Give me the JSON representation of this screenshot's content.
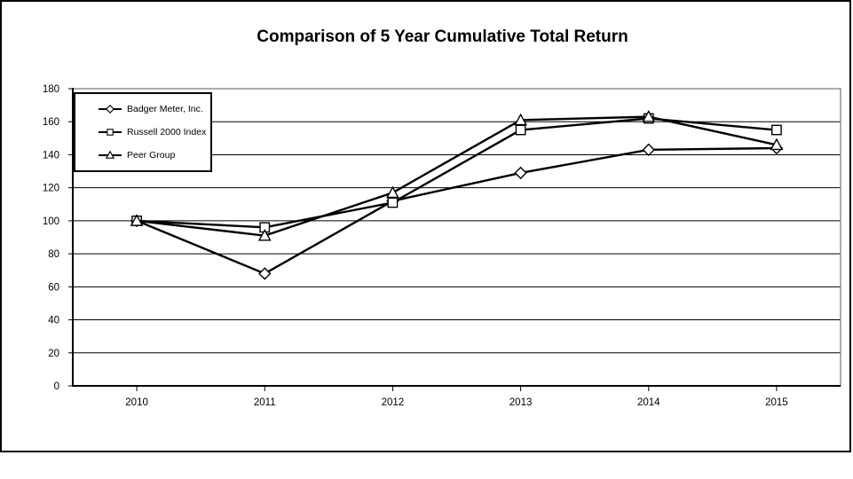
{
  "chart_data": {
    "type": "line",
    "title": "Comparison of 5 Year Cumulative Total Return",
    "categories": [
      "2010",
      "2011",
      "2012",
      "2013",
      "2014",
      "2015"
    ],
    "series": [
      {
        "name": "Badger Meter, Inc.",
        "marker": "diamond",
        "values": [
          100,
          68,
          112,
          129,
          143,
          144
        ]
      },
      {
        "name": "Russell 2000 Index",
        "marker": "square",
        "values": [
          100,
          96,
          111,
          155,
          162,
          155
        ]
      },
      {
        "name": "Peer Group",
        "marker": "triangle",
        "values": [
          100,
          91,
          117,
          161,
          163,
          146
        ]
      }
    ],
    "xlabel": "",
    "ylabel": "",
    "ylim": [
      0,
      180
    ],
    "ytick_step": 20,
    "ytick_labels": [
      "0",
      "20",
      "40",
      "60",
      "80",
      "100",
      "120",
      "140",
      "160",
      "180"
    ],
    "grid": true,
    "legend_position": "top-left-inside",
    "colors": {
      "line": "#000000",
      "axis": "#000000",
      "gridline": "#000000",
      "plot_border": "#808080",
      "marker_fill": "#ffffff",
      "background": "#ffffff",
      "text": "#000000"
    }
  }
}
